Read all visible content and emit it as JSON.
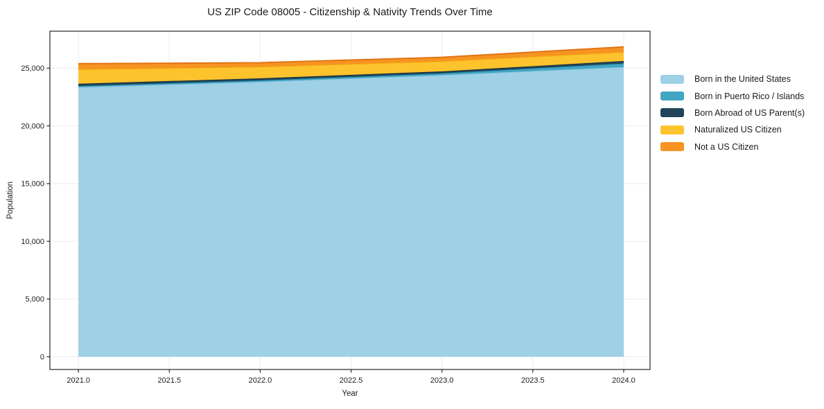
{
  "chart_data": {
    "type": "area",
    "stacked": true,
    "title": "US ZIP Code 08005 - Citizenship & Nativity Trends Over Time",
    "xlabel": "Year",
    "ylabel": "Population",
    "x": [
      2021,
      2022,
      2023,
      2024
    ],
    "series": [
      {
        "name": "Born in the United States",
        "values": [
          23350,
          23820,
          24400,
          25100
        ],
        "color": "#9ED0E6",
        "edge_color": "#8AC4DE"
      },
      {
        "name": "Born in Puerto Rico / Islands",
        "values": [
          100,
          120,
          150,
          310
        ],
        "color": "#41A6C4",
        "edge_color": "#2F93B4"
      },
      {
        "name": "Born Abroad of US Parent(s)",
        "values": [
          200,
          180,
          170,
          210
        ],
        "color": "#20455A",
        "edge_color": "#16303F"
      },
      {
        "name": "Naturalized US Citizen",
        "values": [
          1250,
          1000,
          880,
          780
        ],
        "color": "#FCC32D",
        "edge_color": "#EFAC12"
      },
      {
        "name": "Not a US Citizen",
        "values": [
          490,
          350,
          340,
          440
        ],
        "color": "#F79321",
        "edge_color": "#E07414"
      }
    ],
    "xticks": [
      2021.0,
      2021.5,
      2022.0,
      2022.5,
      2023.0,
      2023.5,
      2024.0
    ],
    "xtick_labels": [
      "2021.0",
      "2021.5",
      "2022.0",
      "2022.5",
      "2023.0",
      "2023.5",
      "2024.0"
    ],
    "yticks": [
      0,
      5000,
      10000,
      15000,
      20000,
      25000
    ],
    "ytick_labels": [
      "0",
      "5,000",
      "10,000",
      "15,000",
      "20,000",
      "25,000"
    ],
    "xlim": [
      2020.843,
      2024.145
    ],
    "ylim": [
      -1100,
      28200
    ],
    "grid": true,
    "legend_position": "right-outside",
    "colors": {
      "grid": "#EBEBEB",
      "spine": "#262626",
      "tick_text": "#1a1a1a",
      "background": "#FFFFFF"
    }
  }
}
